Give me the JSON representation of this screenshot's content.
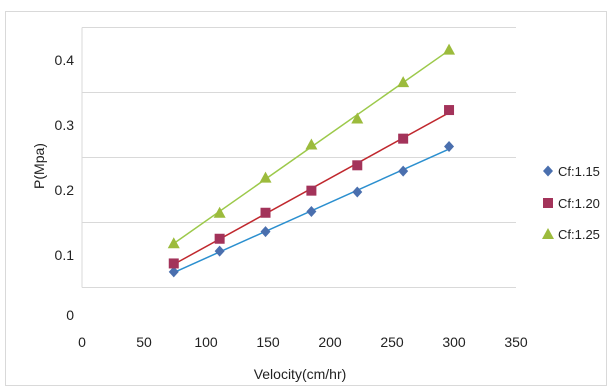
{
  "chart_data": {
    "type": "scatter",
    "xlabel": "Velocity(cm/hr)",
    "ylabel": "P(Mpa)",
    "xlim": [
      0,
      350
    ],
    "ylim": [
      0,
      0.45
    ],
    "x_ticks": [
      0,
      50,
      100,
      150,
      200,
      250,
      300,
      350
    ],
    "y_tick_labels": [
      "0",
      "0.1",
      "0.2",
      "0.3",
      "0.4"
    ],
    "y_tick_values": [
      0,
      0.1,
      0.2,
      0.3,
      0.4
    ],
    "grid": "horizontal",
    "legend_position": "right",
    "trendlines": "linear",
    "series": [
      {
        "name": "Cf:1.15",
        "marker": "diamond",
        "color": "#4a6fae",
        "line_color": "#2b8fcf",
        "x": [
          74,
          111,
          148,
          185,
          222,
          259,
          296
        ],
        "y": [
          0.074,
          0.106,
          0.136,
          0.167,
          0.197,
          0.229,
          0.267
        ]
      },
      {
        "name": "Cf:1.20",
        "marker": "square",
        "color": "#a3335a",
        "line_color": "#c0282e",
        "x": [
          74,
          111,
          148,
          185,
          222,
          259,
          296
        ],
        "y": [
          0.087,
          0.125,
          0.165,
          0.199,
          0.238,
          0.279,
          0.323
        ]
      },
      {
        "name": "Cf:1.25",
        "marker": "triangle",
        "color": "#9cbb3c",
        "line_color": "#9cc94a",
        "x": [
          74,
          111,
          148,
          185,
          222,
          259,
          296
        ],
        "y": [
          0.118,
          0.165,
          0.219,
          0.27,
          0.31,
          0.366,
          0.416
        ]
      }
    ]
  }
}
